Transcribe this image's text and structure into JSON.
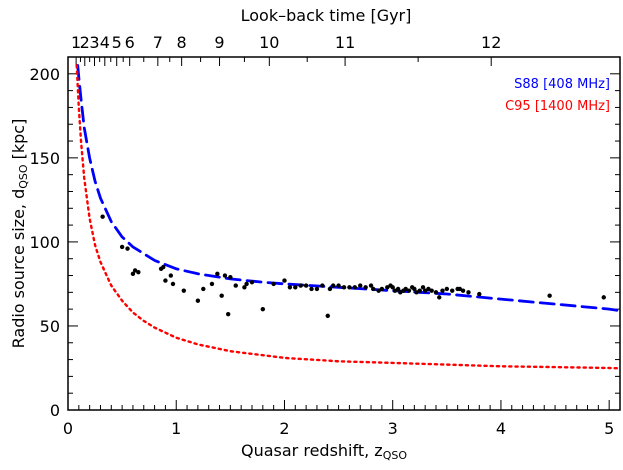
{
  "chart_data": {
    "type": "scatter",
    "title": "",
    "xlabel": "Quasar redshift, z",
    "xlabel_sub": "QSO",
    "ylabel": "Radio source size, d",
    "ylabel_sub": "QSO",
    "ylabel_unit": " [kpc]",
    "top_label": "Look–back time [Gyr]",
    "xlim": [
      0,
      5.1
    ],
    "ylim": [
      0,
      210
    ],
    "x_ticks": [
      0,
      1,
      2,
      3,
      4,
      5
    ],
    "y_ticks": [
      0,
      50,
      100,
      150,
      200
    ],
    "top_ticks": [
      {
        "label": "1",
        "z": 0.075
      },
      {
        "label": "2",
        "z": 0.155
      },
      {
        "label": "3",
        "z": 0.245
      },
      {
        "label": "4",
        "z": 0.34
      },
      {
        "label": "5",
        "z": 0.45
      },
      {
        "label": "6",
        "z": 0.57
      },
      {
        "label": "7",
        "z": 0.83
      },
      {
        "label": "8",
        "z": 1.05
      },
      {
        "label": "9",
        "z": 1.4
      },
      {
        "label": "10",
        "z": 1.86
      },
      {
        "label": "11",
        "z": 2.56
      },
      {
        "label": "12",
        "z": 3.91
      }
    ],
    "grid": false,
    "legend_placement": "top-right",
    "series": [
      {
        "name": "S88  [408 MHz]",
        "kind": "dashed",
        "color": "#0000ff",
        "points": [
          [
            0.09,
            205
          ],
          [
            0.1,
            198
          ],
          [
            0.12,
            185
          ],
          [
            0.15,
            168
          ],
          [
            0.2,
            150
          ],
          [
            0.25,
            136
          ],
          [
            0.3,
            126
          ],
          [
            0.4,
            112
          ],
          [
            0.5,
            103
          ],
          [
            0.6,
            97
          ],
          [
            0.7,
            93
          ],
          [
            0.8,
            89
          ],
          [
            1.0,
            84
          ],
          [
            1.2,
            81
          ],
          [
            1.5,
            78
          ],
          [
            1.8,
            76
          ],
          [
            2.0,
            75
          ],
          [
            2.5,
            73
          ],
          [
            3.0,
            71
          ],
          [
            3.5,
            69
          ],
          [
            4.0,
            66
          ],
          [
            4.5,
            63
          ],
          [
            5.0,
            60
          ],
          [
            5.1,
            59
          ]
        ]
      },
      {
        "name": "C95 [1400 MHz]",
        "kind": "dotted",
        "color": "#ff0000",
        "points": [
          [
            0.08,
            205
          ],
          [
            0.09,
            193
          ],
          [
            0.1,
            180
          ],
          [
            0.12,
            160
          ],
          [
            0.15,
            138
          ],
          [
            0.2,
            114
          ],
          [
            0.25,
            98
          ],
          [
            0.3,
            88
          ],
          [
            0.4,
            74
          ],
          [
            0.5,
            65
          ],
          [
            0.6,
            58
          ],
          [
            0.7,
            53
          ],
          [
            0.8,
            49
          ],
          [
            1.0,
            43
          ],
          [
            1.2,
            39
          ],
          [
            1.5,
            35
          ],
          [
            2.0,
            31
          ],
          [
            2.5,
            29
          ],
          [
            3.0,
            28
          ],
          [
            3.5,
            27
          ],
          [
            4.0,
            26
          ],
          [
            4.5,
            25.5
          ],
          [
            5.0,
            25
          ],
          [
            5.1,
            24.8
          ]
        ]
      },
      {
        "name": "",
        "kind": "points",
        "color": "#000000",
        "points": [
          [
            0.32,
            115
          ],
          [
            0.5,
            97
          ],
          [
            0.55,
            96
          ],
          [
            0.6,
            81
          ],
          [
            0.62,
            83
          ],
          [
            0.65,
            82
          ],
          [
            0.86,
            84
          ],
          [
            0.88,
            85
          ],
          [
            0.9,
            77
          ],
          [
            0.95,
            80
          ],
          [
            0.97,
            75
          ],
          [
            1.07,
            71
          ],
          [
            1.2,
            65
          ],
          [
            1.25,
            72
          ],
          [
            1.33,
            75
          ],
          [
            1.38,
            81
          ],
          [
            1.42,
            68
          ],
          [
            1.45,
            80
          ],
          [
            1.48,
            57
          ],
          [
            1.5,
            79
          ],
          [
            1.55,
            74
          ],
          [
            1.63,
            73
          ],
          [
            1.65,
            75
          ],
          [
            1.7,
            76
          ],
          [
            1.8,
            60
          ],
          [
            1.9,
            75
          ],
          [
            2.0,
            77
          ],
          [
            2.05,
            73
          ],
          [
            2.1,
            73
          ],
          [
            2.15,
            74
          ],
          [
            2.2,
            74
          ],
          [
            2.25,
            72
          ],
          [
            2.3,
            72
          ],
          [
            2.35,
            74
          ],
          [
            2.4,
            56
          ],
          [
            2.42,
            72
          ],
          [
            2.45,
            74
          ],
          [
            2.5,
            74
          ],
          [
            2.55,
            73
          ],
          [
            2.6,
            73
          ],
          [
            2.65,
            73
          ],
          [
            2.7,
            74
          ],
          [
            2.75,
            73
          ],
          [
            2.8,
            74
          ],
          [
            2.82,
            72
          ],
          [
            2.87,
            71
          ],
          [
            2.9,
            72
          ],
          [
            2.95,
            73
          ],
          [
            2.98,
            74
          ],
          [
            3.0,
            73
          ],
          [
            3.02,
            71
          ],
          [
            3.05,
            72
          ],
          [
            3.07,
            70
          ],
          [
            3.1,
            71
          ],
          [
            3.12,
            72
          ],
          [
            3.15,
            71
          ],
          [
            3.18,
            73
          ],
          [
            3.2,
            72
          ],
          [
            3.22,
            70
          ],
          [
            3.25,
            71
          ],
          [
            3.28,
            73
          ],
          [
            3.3,
            71
          ],
          [
            3.33,
            72
          ],
          [
            3.36,
            71
          ],
          [
            3.4,
            70
          ],
          [
            3.43,
            67
          ],
          [
            3.46,
            71
          ],
          [
            3.5,
            72
          ],
          [
            3.55,
            71
          ],
          [
            3.6,
            72
          ],
          [
            3.62,
            72
          ],
          [
            3.65,
            71
          ],
          [
            3.7,
            70
          ],
          [
            3.8,
            69
          ],
          [
            4.45,
            68
          ],
          [
            4.95,
            67
          ]
        ]
      }
    ]
  }
}
